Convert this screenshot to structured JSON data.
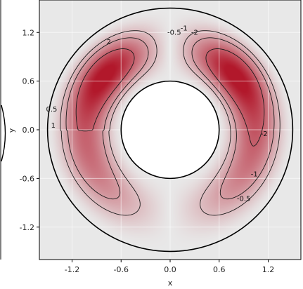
{
  "chart_data": {
    "type": "heatmap",
    "title": "",
    "xlabel": "x",
    "ylabel": "y",
    "xlim": [
      -1.6,
      1.6
    ],
    "ylim": [
      -1.6,
      1.6
    ],
    "x_ticks": [
      "-1.2",
      "-0.6",
      "0.0",
      "0.6",
      "1.2"
    ],
    "x_tick_values": [
      -1.2,
      -0.6,
      0.0,
      0.6,
      1.2
    ],
    "y_ticks": [
      "1.2",
      "0.6",
      "0.0",
      "-0.6",
      "-1.2"
    ],
    "y_tick_values": [
      1.2,
      0.6,
      0.0,
      -0.6,
      -1.2
    ],
    "grid": true,
    "domain": {
      "shape": "annulus",
      "outer_radius": 1.5,
      "inner_radius": 0.6
    },
    "contour_levels": [
      -2,
      -1,
      -0.5,
      0.5,
      1,
      2
    ],
    "contour_labels": [
      {
        "text": "2",
        "x": -0.75,
        "y": 1.08
      },
      {
        "text": "0.5",
        "x": -1.45,
        "y": 0.25
      },
      {
        "text": "1",
        "x": -1.43,
        "y": 0.05
      },
      {
        "text": "-0.5",
        "x": 0.05,
        "y": 1.2
      },
      {
        "text": "-1",
        "x": 0.17,
        "y": 1.25
      },
      {
        "text": "-2",
        "x": 0.3,
        "y": 1.2
      },
      {
        "text": "-2",
        "x": 1.15,
        "y": -0.05
      },
      {
        "text": "-1",
        "x": 1.03,
        "y": -0.55
      },
      {
        "text": "-0.5",
        "x": 0.9,
        "y": -0.85
      }
    ],
    "colormap": {
      "positive": "#b2182b",
      "neutral": "#e8e8e8",
      "negative": "#2040c8"
    },
    "field_range": [
      -3.3,
      3.3
    ]
  }
}
